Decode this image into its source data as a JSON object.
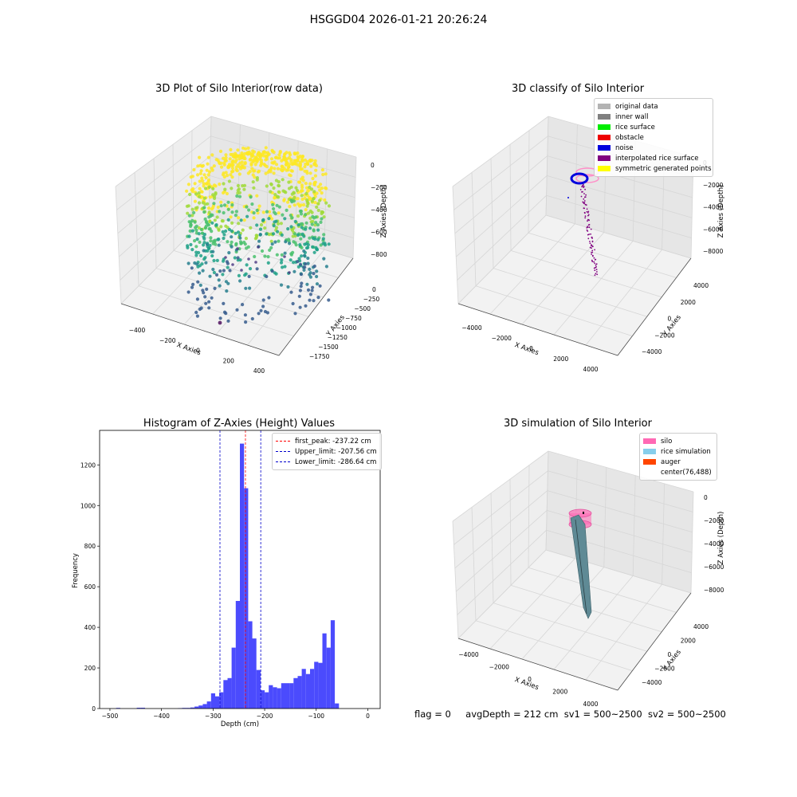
{
  "suptitle": "HSGGD04 2026-01-21 20:26:24",
  "status": {
    "flag": "flag = 0",
    "avg": "avgDepth = 212 cm",
    "sv1": "sv1 = 500~2500",
    "sv2": "sv2 = 500~2500"
  },
  "chart_data": [
    {
      "type": "scatter",
      "title": "3D Plot of Silo Interior(row data)",
      "xlabel": "X Axies",
      "ylabel": "Y Axies",
      "zlabel": "Z Axies (Depth)",
      "x_ticks": [
        "−400",
        "−200",
        "0",
        "200",
        "400"
      ],
      "y_ticks": [
        "0",
        "−250",
        "−500",
        "−750",
        "−1000",
        "−1250",
        "−1500",
        "−1750"
      ],
      "z_ticks": [
        "0",
        "−200",
        "−400",
        "−600",
        "−800"
      ],
      "colormap": "viridis"
    },
    {
      "type": "scatter",
      "title": "3D classify of Silo Interior",
      "xlabel": "X Axies",
      "ylabel": "Y Axies",
      "zlabel": "Z Axies (Depth)",
      "x_ticks": [
        "−4000",
        "−2000",
        "0",
        "2000",
        "4000"
      ],
      "y_ticks": [
        "4000",
        "2000",
        "0",
        "−2000",
        "−4000"
      ],
      "z_ticks": [
        "0",
        "−2000",
        "−4000",
        "−6000",
        "−8000"
      ],
      "legend": [
        {
          "label": "original data",
          "color": "#b3b3b3"
        },
        {
          "label": "inner wall",
          "color": "#808080"
        },
        {
          "label": "rice surface",
          "color": "#00ee00"
        },
        {
          "label": "obstacle",
          "color": "#ee0000"
        },
        {
          "label": "noise",
          "color": "#0000dd"
        },
        {
          "label": "interpolated rice surface",
          "color": "#800080"
        },
        {
          "label": "symmetric generated points",
          "color": "#ffff00"
        }
      ]
    },
    {
      "type": "bar",
      "title": "Histogram of Z-Axies (Height) Values",
      "xlabel": "Depth (cm)",
      "ylabel": "Frequency",
      "xlim": [
        -520,
        24
      ],
      "ylim": [
        0,
        1370
      ],
      "x_ticks": [
        -500,
        -400,
        -300,
        -200,
        -100,
        0
      ],
      "y_ticks": [
        0,
        200,
        400,
        600,
        800,
        1000,
        1200
      ],
      "bin_width": 8,
      "bar_color": "#4b4bfd",
      "bins": [
        [
          -488,
          3
        ],
        [
          -448,
          4
        ],
        [
          -440,
          4
        ],
        [
          -368,
          2
        ],
        [
          -360,
          3
        ],
        [
          -352,
          3
        ],
        [
          -344,
          5
        ],
        [
          -336,
          10
        ],
        [
          -328,
          15
        ],
        [
          -320,
          22
        ],
        [
          -312,
          35
        ],
        [
          -304,
          75
        ],
        [
          -296,
          60
        ],
        [
          -288,
          80
        ],
        [
          -280,
          140
        ],
        [
          -272,
          150
        ],
        [
          -264,
          300
        ],
        [
          -256,
          530
        ],
        [
          -248,
          1305
        ],
        [
          -240,
          1085
        ],
        [
          -232,
          430
        ],
        [
          -224,
          345
        ],
        [
          -216,
          190
        ],
        [
          -208,
          90
        ],
        [
          -200,
          80
        ],
        [
          -192,
          115
        ],
        [
          -184,
          105
        ],
        [
          -176,
          100
        ],
        [
          -168,
          125
        ],
        [
          -160,
          125
        ],
        [
          -152,
          125
        ],
        [
          -144,
          150
        ],
        [
          -136,
          160
        ],
        [
          -128,
          195
        ],
        [
          -120,
          170
        ],
        [
          -112,
          195
        ],
        [
          -104,
          230
        ],
        [
          -96,
          225
        ],
        [
          -88,
          370
        ],
        [
          -80,
          300
        ],
        [
          -72,
          435
        ],
        [
          -64,
          25
        ]
      ],
      "vlines": [
        {
          "label": "first_peak: -237.22 cm",
          "x": -237.22,
          "color": "#ff0000"
        },
        {
          "label": "Upper_limit: -207.56 cm",
          "x": -207.56,
          "color": "#0000cc"
        },
        {
          "label": "Lower_limit: -286.64 cm",
          "x": -286.64,
          "color": "#0000cc"
        }
      ]
    },
    {
      "type": "surface",
      "title": "3D simulation of Silo Interior",
      "xlabel": "X Axies",
      "ylabel": "Y Axies",
      "zlabel": "Z Axies (Depth)",
      "x_ticks": [
        "−4000",
        "−2000",
        "0",
        "2000",
        "4000"
      ],
      "y_ticks": [
        "4000",
        "2000",
        "0",
        "−2000",
        "−4000"
      ],
      "z_ticks": [
        "0",
        "−2000",
        "−4000",
        "−6000",
        "−8000"
      ],
      "legend": [
        {
          "label": "silo",
          "color": "#ff69b4"
        },
        {
          "label": "rice simulation",
          "color": "#87ceeb"
        },
        {
          "label": "auger",
          "color": "#ff4500"
        },
        {
          "label": "center(76,488)",
          "color": "#ffffff"
        }
      ]
    }
  ]
}
